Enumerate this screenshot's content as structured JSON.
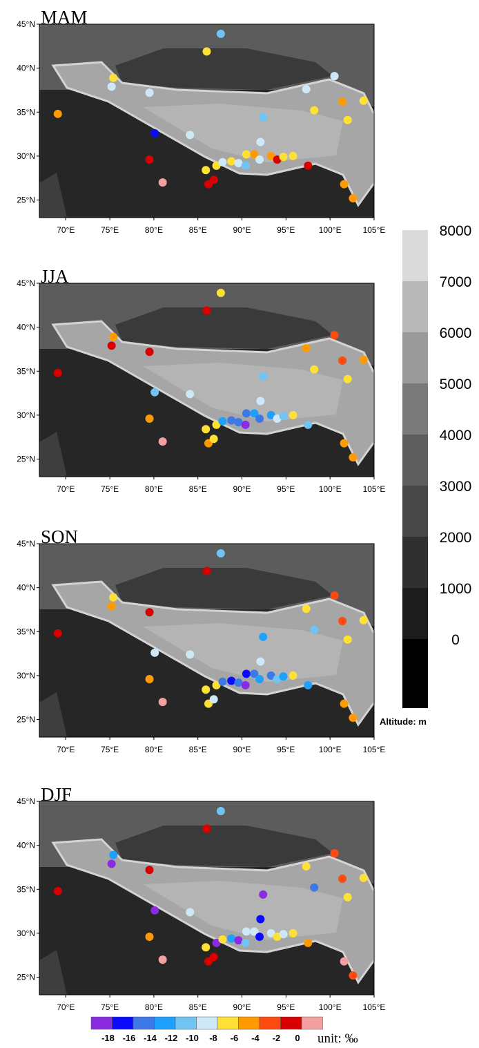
{
  "map": {
    "xlim": [
      67,
      105
    ],
    "ylim": [
      23,
      45
    ],
    "xticks": [
      {
        "value": 70,
        "label": "70°E"
      },
      {
        "value": 75,
        "label": "75°E"
      },
      {
        "value": 80,
        "label": "80°E"
      },
      {
        "value": 85,
        "label": "85°E"
      },
      {
        "value": 90,
        "label": "90°E"
      },
      {
        "value": 95,
        "label": "95°E"
      },
      {
        "value": 100,
        "label": "100°E"
      },
      {
        "value": 105,
        "label": "105°E"
      }
    ],
    "yticks": [
      {
        "value": 25,
        "label": "25°N"
      },
      {
        "value": 30,
        "label": "30°N"
      },
      {
        "value": 35,
        "label": "35°N"
      },
      {
        "value": 40,
        "label": "40°N"
      },
      {
        "value": 45,
        "label": "45°N"
      }
    ]
  },
  "stations": {
    "lon": [
      87.6,
      86.0,
      75.4,
      75.2,
      79.5,
      69.1,
      80.1,
      84.1,
      79.5,
      81.0,
      86.2,
      86.8,
      85.9,
      87.1,
      87.8,
      88.8,
      89.6,
      90.4,
      90.5,
      91.4,
      92.0,
      92.1,
      92.4,
      93.3,
      94.0,
      94.7,
      95.8,
      97.5,
      97.3,
      98.2,
      100.5,
      101.4,
      102.0,
      103.8,
      101.6,
      102.6
    ],
    "lat": [
      43.9,
      41.9,
      38.9,
      37.9,
      37.2,
      34.8,
      32.6,
      32.4,
      29.6,
      27.0,
      26.8,
      27.3,
      28.4,
      28.9,
      29.3,
      29.4,
      29.2,
      28.9,
      30.2,
      30.2,
      29.6,
      31.6,
      34.4,
      30.0,
      29.6,
      29.9,
      30.0,
      28.9,
      37.6,
      35.2,
      39.1,
      36.2,
      34.1,
      36.3,
      26.8,
      25.2
    ]
  },
  "panels": [
    {
      "title": "MAM",
      "values": [
        -11,
        -7,
        -7,
        -9,
        -9,
        -5,
        -17,
        -9,
        -1,
        1,
        -1,
        -1,
        -7,
        -7,
        -9,
        -7,
        -9,
        -11,
        -7,
        -5,
        -9,
        -9,
        -11,
        -5,
        -1,
        -7,
        -7,
        -1,
        -9,
        -7,
        -9,
        -5,
        -7,
        -7,
        -5,
        -5
      ]
    },
    {
      "title": "JJA",
      "values": [
        -7,
        -1,
        -5,
        -1,
        -1,
        -1,
        -11,
        -9,
        -5,
        1,
        -5,
        -7,
        -7,
        -7,
        -13,
        -15,
        -15,
        -19,
        -15,
        -13,
        -15,
        -9,
        -11,
        -13,
        -9,
        -11,
        -7,
        -11,
        -5,
        -7,
        -3,
        -3,
        -7,
        -5,
        -5,
        -5
      ]
    },
    {
      "title": "SON",
      "values": [
        -11,
        -1,
        -7,
        -5,
        -1,
        -1,
        -9,
        -9,
        -5,
        1,
        -7,
        -9,
        -7,
        -7,
        -15,
        -17,
        -15,
        -19,
        -17,
        -15,
        -13,
        -9,
        -13,
        -15,
        -11,
        -13,
        -7,
        -13,
        -7,
        -11,
        -3,
        -3,
        -7,
        -7,
        -5,
        -5
      ]
    },
    {
      "title": "DJF",
      "values": [
        -11,
        -1,
        -13,
        -19,
        -1,
        -1,
        -19,
        -9,
        -5,
        1,
        -1,
        -1,
        -7,
        -19,
        -7,
        -13,
        -19,
        -11,
        -9,
        -9,
        -17,
        -17,
        -19,
        -9,
        -7,
        -9,
        -7,
        -5,
        -7,
        -15,
        -3,
        -3,
        -7,
        -7,
        1,
        -3
      ]
    }
  ],
  "altitude_colorbar": {
    "label": "Altitude: m",
    "ticks": [
      0,
      1000,
      2000,
      3000,
      4000,
      5000,
      6000,
      7000,
      8000
    ],
    "colors": [
      "#000000",
      "#1c1c1c",
      "#303030",
      "#474747",
      "#5e5e5e",
      "#7a7a7a",
      "#9a9a9a",
      "#b8b8b8",
      "#dadada"
    ]
  },
  "value_colorbar": {
    "unit": "unit: ‰",
    "ticks": [
      -18,
      -16,
      -14,
      -12,
      -10,
      -8,
      -6,
      -4,
      -2,
      0
    ],
    "colors": [
      "#8a2be2",
      "#0a0aff",
      "#3c78e6",
      "#1ea0ff",
      "#70c4f2",
      "#cde9f8",
      "#ffe135",
      "#ff9a00",
      "#ff4a10",
      "#d80000",
      "#f4a0a0"
    ]
  }
}
